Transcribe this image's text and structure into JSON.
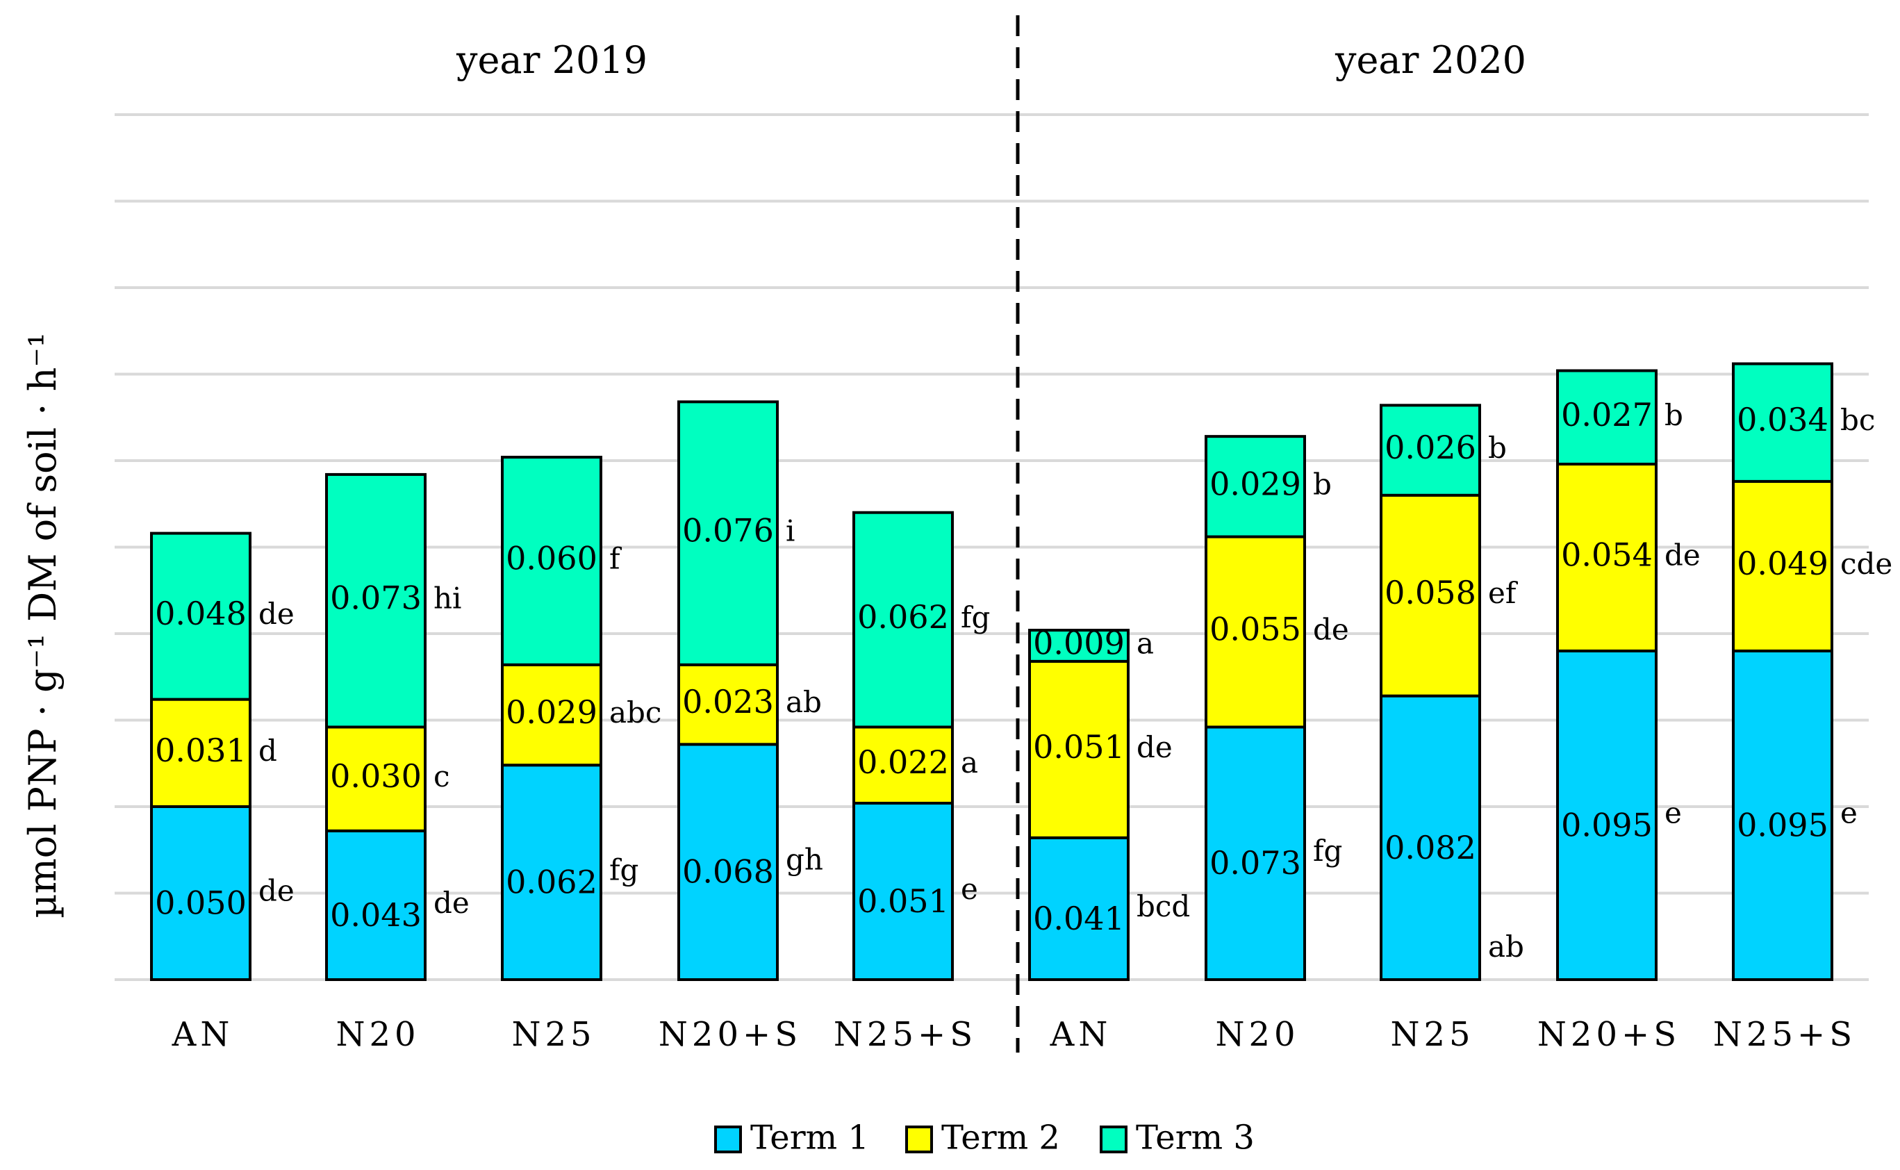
{
  "chart_data": {
    "type": "bar",
    "stacked": true,
    "title": "",
    "xlabel": "",
    "ylabel": "µmol PNP · g⁻¹ DM of soil · h⁻¹",
    "ylim": [
      0,
      0.25
    ],
    "grid": true,
    "legend_position": "bottom",
    "groups": [
      "year 2019",
      "year 2020"
    ],
    "categories": [
      "AN",
      "N20",
      "N25",
      "N20+S",
      "N25+S",
      "AN",
      "N20",
      "N25",
      "N20+S",
      "N25+S"
    ],
    "category_group": [
      0,
      0,
      0,
      0,
      0,
      1,
      1,
      1,
      1,
      1
    ],
    "series": [
      {
        "name": "Term 1",
        "color": "#00d3ff",
        "values": [
          0.05,
          0.043,
          0.062,
          0.068,
          0.051,
          0.041,
          0.073,
          0.082,
          0.095,
          0.095
        ],
        "labels": [
          "0.050",
          "0.043",
          "0.062",
          "0.068",
          "0.051",
          "0.041",
          "0.073",
          "0.082",
          "0.095",
          "0.095"
        ],
        "letters": [
          "de",
          "de",
          "fg",
          "gh",
          "e",
          "bcd",
          "fg",
          "ab",
          "e",
          "e"
        ]
      },
      {
        "name": "Term 2",
        "color": "#ffff00",
        "values": [
          0.031,
          0.03,
          0.029,
          0.023,
          0.022,
          0.051,
          0.055,
          0.058,
          0.054,
          0.049
        ],
        "labels": [
          "0.031",
          "0.030",
          "0.029",
          "0.023",
          "0.022",
          "0.051",
          "0.055",
          "0.058",
          "0.054",
          "0.049"
        ],
        "letters": [
          "d",
          "c",
          "abc",
          "ab",
          "a",
          "de",
          "de",
          "ef",
          "de",
          "cde"
        ]
      },
      {
        "name": "Term 3",
        "color": "#00ffc0",
        "values": [
          0.048,
          0.073,
          0.06,
          0.076,
          0.062,
          0.009,
          0.029,
          0.026,
          0.027,
          0.034
        ],
        "labels": [
          "0.048",
          "0.073",
          "0.060",
          "0.076",
          "0.062",
          "0.009",
          "0.029",
          "0.026",
          "0.027",
          "0.034"
        ],
        "letters": [
          "de",
          "hi",
          "f",
          "i",
          "fg",
          "a",
          "b",
          "b",
          "b",
          "bc"
        ]
      }
    ]
  }
}
